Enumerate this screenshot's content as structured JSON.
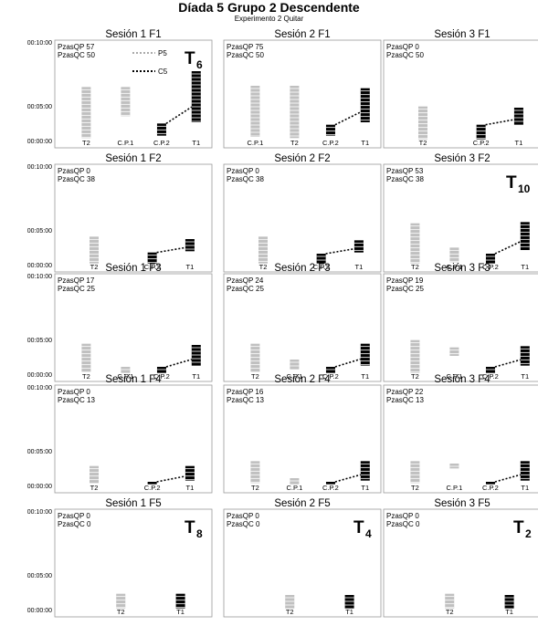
{
  "header": {
    "title": "Díada 5 Grupo 2 Descendente",
    "subtitle": "Experimento 2 Quitar"
  },
  "legend": {
    "p5": "P5",
    "c5": "C5"
  },
  "colors": {
    "light": "#c0c0c0",
    "dark": "#000000"
  },
  "chart_data": [
    {
      "type": "bar",
      "title": "Sesión 1 F1",
      "pzas_qp": "PzasQP 57",
      "pzas_qc": "PzasQC 50",
      "badge": "T",
      "badge_sub": "6",
      "categories": [
        "T2",
        "C.P.1",
        "C.P.2",
        "T1"
      ],
      "ytick_labels": [
        "00:00:00",
        "00:05:00",
        "00:10:00"
      ],
      "ylim": [
        0,
        600
      ],
      "bars": [
        {
          "cat": "T2",
          "lo": 20,
          "hi": 440,
          "tone": "light"
        },
        {
          "cat": "C.P.1",
          "lo": 200,
          "hi": 440,
          "tone": "light"
        },
        {
          "cat": "C.P.2",
          "lo": 40,
          "hi": 140,
          "tone": "dark"
        },
        {
          "cat": "T1",
          "lo": 150,
          "hi": 570,
          "tone": "dark"
        }
      ]
    },
    {
      "type": "bar",
      "title": "Sesión 2 F1",
      "pzas_qp": "PzasQP 75",
      "pzas_qc": "PzasQC 50",
      "badge": "",
      "badge_sub": "",
      "categories": [
        "C.P.1",
        "T2",
        "C.P.2",
        "T1"
      ],
      "ytick_labels": [
        "",
        "",
        ""
      ],
      "ylim": [
        0,
        600
      ],
      "bars": [
        {
          "cat": "C.P.1",
          "lo": 30,
          "hi": 450,
          "tone": "light"
        },
        {
          "cat": "T2",
          "lo": 20,
          "hi": 450,
          "tone": "light"
        },
        {
          "cat": "C.P.2",
          "lo": 40,
          "hi": 130,
          "tone": "dark"
        },
        {
          "cat": "T1",
          "lo": 150,
          "hi": 430,
          "tone": "dark"
        }
      ]
    },
    {
      "type": "bar",
      "title": "Sesión 3 F1",
      "pzas_qp": "PzasQP 0",
      "pzas_qc": "PzasQC 50",
      "badge": "",
      "badge_sub": "",
      "categories": [
        "T2",
        "C.P.2",
        "T1"
      ],
      "ytick_labels": [
        "",
        "",
        ""
      ],
      "ylim": [
        0,
        600
      ],
      "bars": [
        {
          "cat": "T2",
          "lo": 10,
          "hi": 280,
          "tone": "light"
        },
        {
          "cat": "C.P.2",
          "lo": 10,
          "hi": 130,
          "tone": "dark"
        },
        {
          "cat": "T1",
          "lo": 130,
          "hi": 270,
          "tone": "dark"
        }
      ]
    },
    {
      "type": "bar",
      "title": "Sesión 1 F2",
      "pzas_qp": "PzasQP 0",
      "pzas_qc": "PzasQC 38",
      "badge": "",
      "badge_sub": "",
      "categories": [
        "T2",
        "C.P.2",
        "T1"
      ],
      "ytick_labels": [
        "00:00:00",
        "00:05:00",
        "00:10:00"
      ],
      "ylim": [
        0,
        600
      ],
      "bars": [
        {
          "cat": "T2",
          "lo": 10,
          "hi": 230,
          "tone": "light"
        },
        {
          "cat": "C.P.2",
          "lo": 10,
          "hi": 100,
          "tone": "dark"
        },
        {
          "cat": "T1",
          "lo": 110,
          "hi": 210,
          "tone": "dark"
        }
      ]
    },
    {
      "type": "bar",
      "title": "Sesión 2 F2",
      "pzas_qp": "PzasQP 0",
      "pzas_qc": "PzasQC 38",
      "badge": "",
      "badge_sub": "",
      "categories": [
        "T2",
        "C.P.2",
        "T1"
      ],
      "ytick_labels": [
        "",
        "",
        ""
      ],
      "ylim": [
        0,
        600
      ],
      "bars": [
        {
          "cat": "T2",
          "lo": 10,
          "hi": 230,
          "tone": "light"
        },
        {
          "cat": "C.P.2",
          "lo": 10,
          "hi": 90,
          "tone": "dark"
        },
        {
          "cat": "T1",
          "lo": 100,
          "hi": 200,
          "tone": "dark"
        }
      ]
    },
    {
      "type": "bar",
      "title": "Sesión 3 F2",
      "pzas_qp": "PzasQP 53",
      "pzas_qc": "PzasQC 38",
      "badge": "T",
      "badge_sub": "10",
      "categories": [
        "T2",
        "C.P.1",
        "C.P.2",
        "T1"
      ],
      "ytick_labels": [
        "",
        "",
        ""
      ],
      "ylim": [
        0,
        600
      ],
      "bars": [
        {
          "cat": "T2",
          "lo": 10,
          "hi": 340,
          "tone": "light"
        },
        {
          "cat": "C.P.1",
          "lo": 20,
          "hi": 140,
          "tone": "light"
        },
        {
          "cat": "C.P.2",
          "lo": 10,
          "hi": 90,
          "tone": "dark"
        },
        {
          "cat": "T1",
          "lo": 120,
          "hi": 350,
          "tone": "dark"
        }
      ]
    },
    {
      "type": "bar",
      "title": "Sesión 1 F3",
      "pzas_qp": "PzasQP 17",
      "pzas_qc": "PzasQC 25",
      "badge": "",
      "badge_sub": "",
      "categories": [
        "T2",
        "C.P.1",
        "C.P.2",
        "T1"
      ],
      "ytick_labels": [
        "00:00:00",
        "00:05:00",
        "00:10:00"
      ],
      "ylim": [
        0,
        600
      ],
      "bars": [
        {
          "cat": "T2",
          "lo": 20,
          "hi": 250,
          "tone": "light"
        },
        {
          "cat": "C.P.1",
          "lo": 10,
          "hi": 60,
          "tone": "light"
        },
        {
          "cat": "C.P.2",
          "lo": 10,
          "hi": 60,
          "tone": "dark"
        },
        {
          "cat": "T1",
          "lo": 70,
          "hi": 240,
          "tone": "dark"
        }
      ]
    },
    {
      "type": "bar",
      "title": "Sesión 2 F3",
      "pzas_qp": "PzasQP 24",
      "pzas_qc": "PzasQC 25",
      "badge": "",
      "badge_sub": "",
      "categories": [
        "T2",
        "C.P.1",
        "C.P.2",
        "T1"
      ],
      "ytick_labels": [
        "",
        "",
        ""
      ],
      "ylim": [
        0,
        600
      ],
      "bars": [
        {
          "cat": "T2",
          "lo": 20,
          "hi": 250,
          "tone": "light"
        },
        {
          "cat": "C.P.1",
          "lo": 40,
          "hi": 120,
          "tone": "light"
        },
        {
          "cat": "C.P.2",
          "lo": 10,
          "hi": 60,
          "tone": "dark"
        },
        {
          "cat": "T1",
          "lo": 70,
          "hi": 250,
          "tone": "dark"
        }
      ]
    },
    {
      "type": "bar",
      "title": "Sesión 3 F3",
      "pzas_qp": "PzasQP 19",
      "pzas_qc": "PzasQC 25",
      "badge": "",
      "badge_sub": "",
      "categories": [
        "T2",
        "C.P.1",
        "C.P.2",
        "T1"
      ],
      "ytick_labels": [
        "",
        "",
        ""
      ],
      "ylim": [
        0,
        600
      ],
      "bars": [
        {
          "cat": "T2",
          "lo": 10,
          "hi": 280,
          "tone": "light"
        },
        {
          "cat": "C.P.1",
          "lo": 150,
          "hi": 220,
          "tone": "light"
        },
        {
          "cat": "C.P.2",
          "lo": 10,
          "hi": 60,
          "tone": "dark"
        },
        {
          "cat": "T1",
          "lo": 70,
          "hi": 230,
          "tone": "dark"
        }
      ]
    },
    {
      "type": "bar",
      "title": "Sesión 1 F4",
      "pzas_qp": "PzasQP 0",
      "pzas_qc": "PzasQC 13",
      "badge": "",
      "badge_sub": "",
      "categories": [
        "T2",
        "C.P.2",
        "T1"
      ],
      "ytick_labels": [
        "00:00:00",
        "00:05:00",
        "00:10:00"
      ],
      "ylim": [
        0,
        600
      ],
      "bars": [
        {
          "cat": "T2",
          "lo": 20,
          "hi": 160,
          "tone": "light"
        },
        {
          "cat": "C.P.2",
          "lo": 10,
          "hi": 30,
          "tone": "dark"
        },
        {
          "cat": "T1",
          "lo": 40,
          "hi": 160,
          "tone": "dark"
        }
      ]
    },
    {
      "type": "bar",
      "title": "Sesión 2 F4",
      "pzas_qp": "PzasQP 16",
      "pzas_qc": "PzasQC 13",
      "badge": "",
      "badge_sub": "",
      "categories": [
        "T2",
        "C.P.1",
        "C.P.2",
        "T1"
      ],
      "ytick_labels": [
        "",
        "",
        ""
      ],
      "ylim": [
        0,
        600
      ],
      "bars": [
        {
          "cat": "T2",
          "lo": 20,
          "hi": 200,
          "tone": "light"
        },
        {
          "cat": "C.P.1",
          "lo": 10,
          "hi": 60,
          "tone": "light"
        },
        {
          "cat": "C.P.2",
          "lo": 10,
          "hi": 30,
          "tone": "dark"
        },
        {
          "cat": "T1",
          "lo": 40,
          "hi": 200,
          "tone": "dark"
        }
      ]
    },
    {
      "type": "bar",
      "title": "Sesión 3 F4",
      "pzas_qp": "PzasQP 22",
      "pzas_qc": "PzasQC 13",
      "badge": "",
      "badge_sub": "",
      "categories": [
        "T2",
        "C.P.1",
        "C.P.2",
        "T1"
      ],
      "ytick_labels": [
        "",
        "",
        ""
      ],
      "ylim": [
        0,
        600
      ],
      "bars": [
        {
          "cat": "T2",
          "lo": 20,
          "hi": 200,
          "tone": "light"
        },
        {
          "cat": "C.P.1",
          "lo": 140,
          "hi": 180,
          "tone": "light"
        },
        {
          "cat": "C.P.2",
          "lo": 10,
          "hi": 30,
          "tone": "dark"
        },
        {
          "cat": "T1",
          "lo": 40,
          "hi": 200,
          "tone": "dark"
        }
      ]
    },
    {
      "type": "bar",
      "title": "Sesión 1 F5",
      "pzas_qp": "PzasQP 0",
      "pzas_qc": "PzasQC 0",
      "badge": "T",
      "badge_sub": "8",
      "categories": [
        "T2",
        "T1"
      ],
      "ytick_labels": [
        "00:00:00",
        "00:05:00",
        "00:10:00"
      ],
      "ylim": [
        0,
        600
      ],
      "bars": [
        {
          "cat": "T2",
          "lo": 10,
          "hi": 130,
          "tone": "light"
        },
        {
          "cat": "T1",
          "lo": 10,
          "hi": 130,
          "tone": "dark"
        }
      ]
    },
    {
      "type": "bar",
      "title": "Sesión 2 F5",
      "pzas_qp": "PzasQP 0",
      "pzas_qc": "PzasQC 0",
      "badge": "T",
      "badge_sub": "4",
      "categories": [
        "T2",
        "T1"
      ],
      "ytick_labels": [
        "",
        "",
        ""
      ],
      "ylim": [
        0,
        600
      ],
      "bars": [
        {
          "cat": "T2",
          "lo": 10,
          "hi": 120,
          "tone": "light"
        },
        {
          "cat": "T1",
          "lo": 10,
          "hi": 120,
          "tone": "dark"
        }
      ]
    },
    {
      "type": "bar",
      "title": "Sesión 3 F5",
      "pzas_qp": "PzasQP 0",
      "pzas_qc": "PzasQC 0",
      "badge": "T",
      "badge_sub": "2",
      "categories": [
        "T2",
        "T1"
      ],
      "ytick_labels": [
        "",
        "",
        ""
      ],
      "ylim": [
        0,
        600
      ],
      "bars": [
        {
          "cat": "T2",
          "lo": 10,
          "hi": 130,
          "tone": "light"
        },
        {
          "cat": "T1",
          "lo": 10,
          "hi": 120,
          "tone": "dark"
        }
      ]
    }
  ]
}
